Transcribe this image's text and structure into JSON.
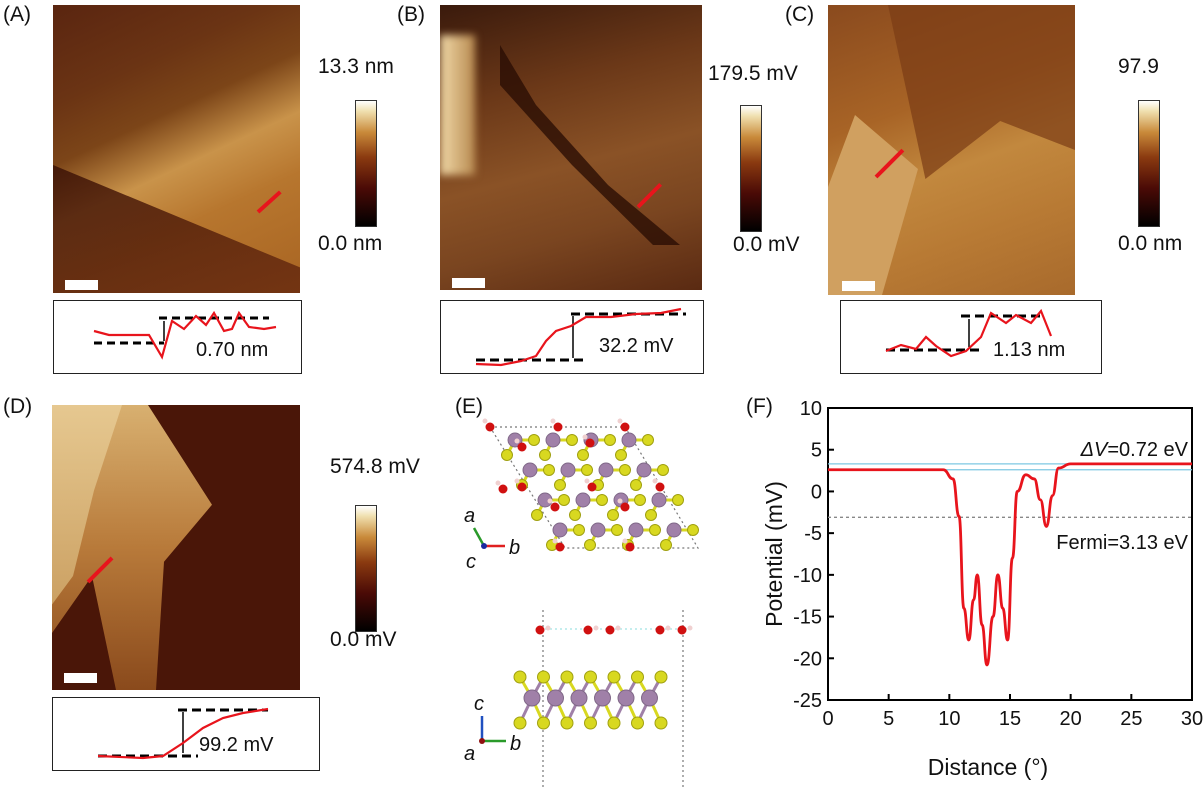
{
  "panels": {
    "A": {
      "label": "(A)",
      "cbar_max": "13.3 nm",
      "cbar_min": "0.0 nm",
      "profile_value": "0.70 nm"
    },
    "B": {
      "label": "(B)",
      "cbar_max": "179.5 mV",
      "cbar_min": "0.0 mV",
      "profile_value": "32.2 mV"
    },
    "C": {
      "label": "(C)",
      "cbar_max": "97.9",
      "cbar_min": "0.0 nm",
      "profile_value": "1.13 nm"
    },
    "D": {
      "label": "(D)",
      "cbar_max": "574.8 mV",
      "cbar_min": "0.0 mV",
      "profile_value": "99.2 mV"
    },
    "E": {
      "label": "(E)",
      "top_axes": {
        "a": "a",
        "b": "b",
        "c": "c"
      },
      "side_axes": {
        "a": "a",
        "b": "b",
        "c": "c"
      }
    },
    "F": {
      "label": "(F)"
    }
  },
  "colors": {
    "curve": "#e8141c",
    "vacuum_lines": "#7ec8e3",
    "fermi_line": "#888888",
    "S": "#d8d820",
    "Mo": "#a080a8",
    "O": "#d01010",
    "H": "#f0d0d0"
  },
  "chart_data": {
    "type": "line",
    "title": "",
    "xlabel": "Distance (°)",
    "ylabel": "Potential (mV)",
    "xlim": [
      0,
      30
    ],
    "ylim": [
      -25,
      10
    ],
    "xticks": [
      "0",
      "5",
      "10",
      "15",
      "20",
      "25",
      "30"
    ],
    "yticks": [
      "10",
      "5",
      "0",
      "-5",
      "-10",
      "-15",
      "-20",
      "-25"
    ],
    "series": [
      {
        "name": "potential",
        "x": [
          0,
          9.5,
          10.3,
          10.8,
          11.2,
          11.6,
          12.0,
          12.3,
          12.7,
          13.1,
          13.6,
          14.0,
          14.4,
          14.8,
          15.2,
          15.6,
          16.3,
          17.0,
          17.5,
          18.0,
          18.5,
          19.0,
          20.0,
          30.0
        ],
        "y": [
          2.6,
          2.6,
          1.5,
          -3,
          -14,
          -17.8,
          -13,
          -10,
          -16,
          -20.8,
          -15,
          -10,
          -14,
          -17.8,
          -8,
          0,
          2,
          1.5,
          -1,
          -4.2,
          -0.5,
          2.8,
          3.3,
          3.3
        ]
      }
    ],
    "reference_lines": [
      {
        "name": "vacuum-level-left",
        "y": 2.6
      },
      {
        "name": "vacuum-level-right",
        "y": 3.3
      },
      {
        "name": "fermi-level",
        "y": -3.1
      }
    ],
    "annotations": {
      "delta_v_symbol": "ΔV",
      "delta_v_value": "=0.72 eV",
      "fermi": "Fermi=3.13 eV"
    }
  }
}
